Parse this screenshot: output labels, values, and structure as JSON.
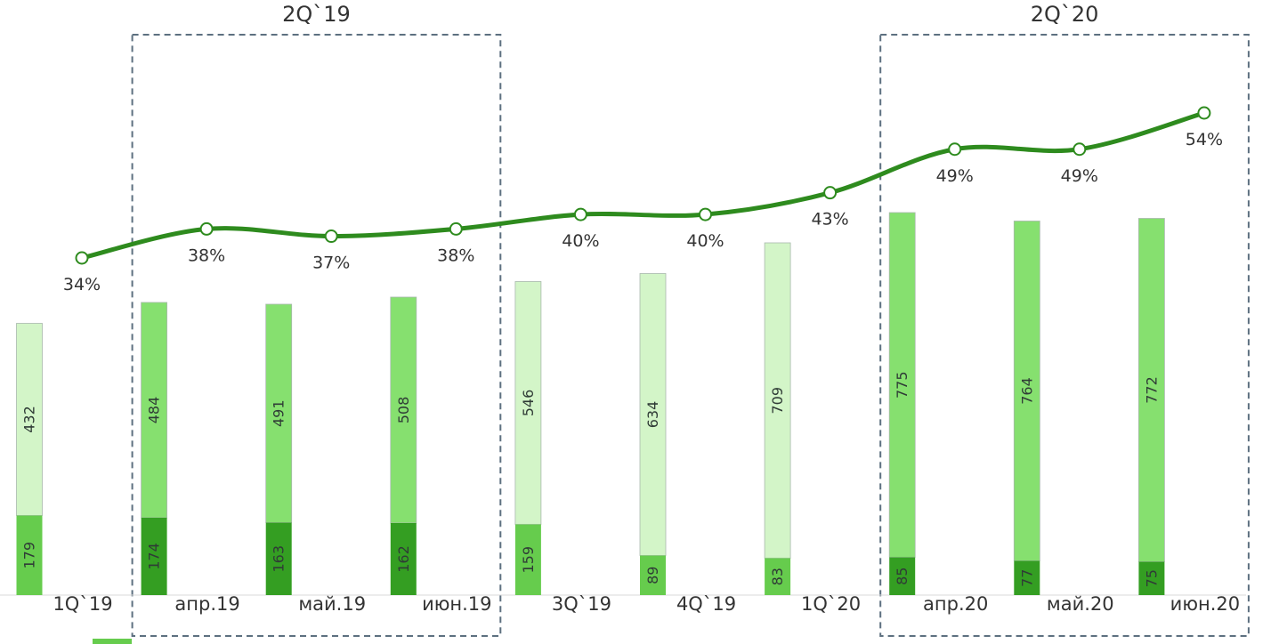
{
  "chart_data": {
    "type": "bar",
    "categories": [
      "1Q`19",
      "апр.19",
      "май.19",
      "июн.19",
      "3Q`19",
      "4Q`19",
      "1Q`20",
      "апр.20",
      "май.20",
      "июн.20"
    ],
    "series": [
      {
        "role": "bottom",
        "values": [
          179,
          174,
          163,
          162,
          159,
          89,
          83,
          85,
          77,
          75
        ]
      },
      {
        "role": "top",
        "values": [
          432,
          484,
          491,
          508,
          546,
          634,
          709,
          775,
          764,
          772
        ]
      }
    ],
    "line": {
      "values": [
        34,
        38,
        37,
        38,
        40,
        40,
        43,
        49,
        49,
        54
      ],
      "labels": [
        "34%",
        "38%",
        "37%",
        "38%",
        "40%",
        "40%",
        "43%",
        "49%",
        "49%",
        "54%"
      ],
      "color": "#2e8b1e"
    },
    "groups": [
      {
        "label": "2Q`19",
        "from": 1,
        "to": 3
      },
      {
        "label": "2Q`20",
        "from": 7,
        "to": 9
      }
    ],
    "colors": {
      "quarter_bottom": "#66cc4d",
      "quarter_top": "#d3f5c8",
      "month_bottom": "#349e22",
      "month_top": "#86e06f",
      "baseline": "#d9d9d9",
      "group_border": "#5d7080"
    },
    "kinds": [
      "quarter",
      "month",
      "month",
      "month",
      "quarter",
      "quarter",
      "quarter",
      "month",
      "month",
      "month"
    ]
  }
}
